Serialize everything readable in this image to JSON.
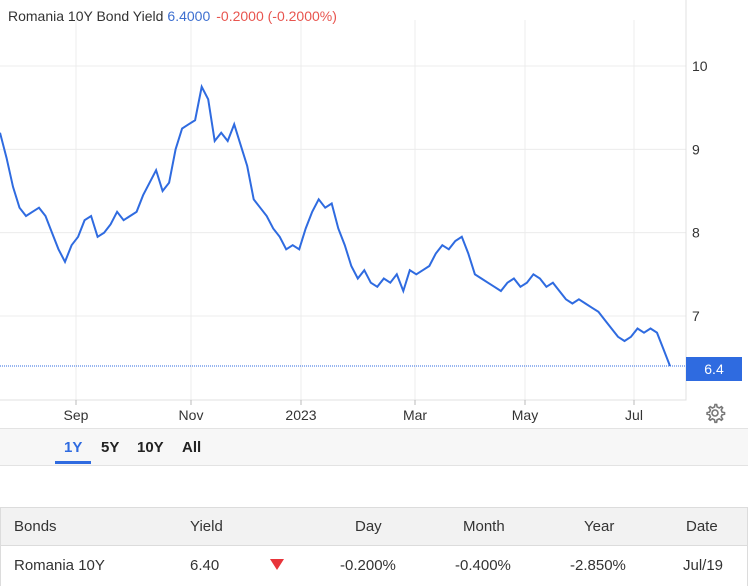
{
  "header": {
    "instrument": "Romania 10Y Bond Yield",
    "last": "6.4000",
    "change": "-0.2000 (-0.2000%)"
  },
  "chart_data": {
    "type": "line",
    "series": [
      {
        "values": [
          9.2,
          8.9,
          8.55,
          8.3,
          8.2,
          8.25,
          8.3,
          8.2,
          8.0,
          7.8,
          7.65,
          7.85,
          7.95,
          8.15,
          8.2,
          7.95,
          8.0,
          8.1,
          8.25,
          8.15,
          8.2,
          8.25,
          8.45,
          8.6,
          8.75,
          8.5,
          8.6,
          9.0,
          9.25,
          9.3,
          9.35,
          9.75,
          9.6,
          9.1,
          9.2,
          9.1,
          9.3,
          9.05,
          8.8,
          8.4,
          8.3,
          8.2,
          8.05,
          7.95,
          7.8,
          7.85,
          7.8,
          8.05,
          8.25,
          8.4,
          8.3,
          8.35,
          8.05,
          7.85,
          7.6,
          7.45,
          7.55,
          7.4,
          7.35,
          7.45,
          7.4,
          7.5,
          7.3,
          7.55,
          7.5,
          7.55,
          7.6,
          7.75,
          7.85,
          7.8,
          7.9,
          7.95,
          7.75,
          7.5,
          7.45,
          7.4,
          7.35,
          7.3,
          7.4,
          7.45,
          7.35,
          7.4,
          7.5,
          7.45,
          7.35,
          7.4,
          7.3,
          7.2,
          7.15,
          7.2,
          7.15,
          7.1,
          7.05,
          6.95,
          6.85,
          6.75,
          6.7,
          6.75,
          6.85,
          6.8,
          6.85,
          6.8,
          6.6,
          6.4
        ]
      }
    ],
    "x_ticks": [
      "Sep",
      "Nov",
      "2023",
      "Mar",
      "May",
      "Jul"
    ],
    "y_ticks": [
      "10",
      "9",
      "8",
      "7"
    ],
    "ylim": [
      6.0,
      10.5
    ],
    "last_value_label": "6.4",
    "line_color": "#2f6be0",
    "grid": true
  },
  "ranges": [
    "1Y",
    "5Y",
    "10Y",
    "All"
  ],
  "active_range": "1Y",
  "table": {
    "headers": [
      "Bonds",
      "Yield",
      "Day",
      "Month",
      "Year",
      "Date"
    ],
    "row": {
      "name": "Romania 10Y",
      "yield": "6.40",
      "day": "-0.200%",
      "month": "-0.400%",
      "year": "-2.850%",
      "date": "Jul/19",
      "direction_icon": "down-triangle-icon",
      "direction_color": "#e8343a"
    }
  },
  "icons": {
    "settings": "gear-icon"
  }
}
